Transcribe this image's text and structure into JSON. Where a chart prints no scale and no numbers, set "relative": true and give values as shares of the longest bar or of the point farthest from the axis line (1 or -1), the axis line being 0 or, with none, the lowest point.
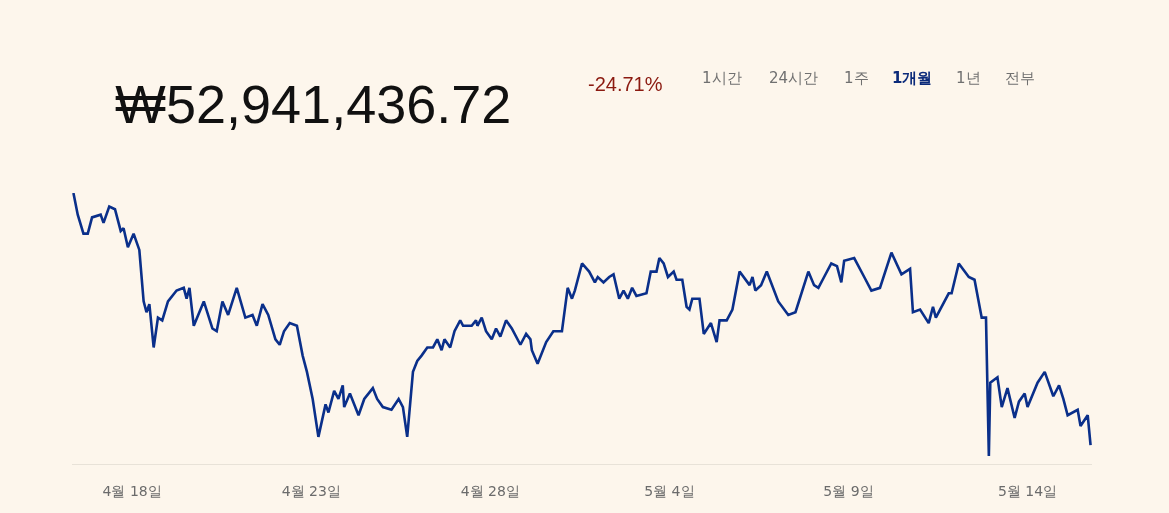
{
  "chart_data": {
    "type": "line",
    "title": "₩52,941,436.72",
    "subtitle": "-24.71%",
    "annotations": [
      "1시간",
      "24시간",
      "1주",
      "1개월",
      "1년",
      "전부"
    ],
    "relative": true,
    "x": [
      "--04-16T17:00",
      "--04-16T20:00",
      "--04-17T00:00",
      "--04-17T03:00",
      "--04-17T06:00",
      "--04-17T12:00",
      "--04-17T14:00",
      "--04-17T18:00",
      "--04-17T22:00",
      "--04-18T02:00",
      "--04-18T04:00",
      "--04-18T07:00",
      "--04-18T11:00",
      "--04-18T15:00",
      "--04-18T18:00",
      "--04-18T20:00",
      "--04-18T22:00",
      "--04-19T01:00",
      "--04-19T04:00",
      "--04-19T07:00",
      "--04-19T11:00",
      "--04-19T17:00",
      "--04-19T22:00",
      "--04-20T00:00",
      "--04-20T02:00",
      "--04-20T05:00",
      "--04-20T12:00",
      "--04-20T18:00",
      "--04-20T21:00",
      "--04-21T01:00",
      "--04-21T05:00",
      "--04-21T11:00",
      "--04-21T17:00",
      "--04-21T22:00",
      "--04-22T01:00",
      "--04-22T05:00",
      "--04-22T09:00",
      "--04-22T14:00",
      "--04-22T17:00",
      "--04-22T20:00",
      "--04-23T00:00",
      "--04-23T05:00",
      "--04-23T09:00",
      "--04-23T12:00",
      "--04-23T16:00",
      "--04-23T20:00",
      "--04-24T01:00",
      "--04-24T03:00",
      "--04-24T07:00",
      "--04-24T10:00",
      "--04-24T13:00",
      "--04-24T14:00",
      "--04-24T18:00",
      "--04-25T00:00",
      "--04-25T04:00",
      "--04-25T10:00",
      "--04-25T13:00",
      "--04-25T17:00",
      "--04-25T23:00",
      "--04-26T04:00",
      "--04-26T07:00",
      "--04-26T10:00",
      "--04-26T14:00",
      "--04-26T17:00",
      "--04-26T20:00",
      "--04-27T00:00",
      "--04-27T04:00",
      "--04-27T07:00",
      "--04-27T10:00",
      "--04-27T12:00",
      "--04-27T16:00",
      "--04-27T19:00",
      "--04-27T23:00",
      "--04-28T01:00",
      "--04-28T07:00",
      "--04-28T10:00",
      "--04-28T11:00",
      "--04-28T14:00",
      "--04-28T17:00",
      "--04-28T21:00",
      "--04-29T00:00",
      "--04-29T03:00",
      "--04-29T07:00",
      "--04-29T11:00",
      "--04-29T17:00",
      "--04-29T21:00",
      "--04-30T00:00",
      "--04-30T01:00",
      "--04-30T05:00",
      "--04-30T11:00",
      "--04-30T16:00",
      "--04-30T22:00",
      "--05-01T02:00",
      "--05-01T05:00",
      "--05-01T07:00",
      "--05-01T12:00",
      "--05-01T17:00",
      "--05-01T21:00",
      "--05-01T23:00",
      "--05-02T03:00",
      "--05-02T07:00",
      "--05-02T10:00",
      "--05-02T14:00",
      "--05-02T17:00",
      "--05-02T20:00",
      "--05-02T23:00",
      "--05-03T02:00",
      "--05-03T09:00",
      "--05-03T12:00",
      "--05-03T16:00",
      "--05-03T18:00",
      "--05-03T21:00",
      "--05-04T00:00",
      "--05-04T04:00",
      "--05-04T06:00",
      "--05-04T10:00",
      "--05-04T13:00",
      "--05-04T15:00",
      "--05-04T17:00",
      "--05-04T22:00",
      "--05-05T01:00",
      "--05-05T06:00",
      "--05-05T10:00",
      "--05-05T12:00",
      "--05-05T17:00",
      "--05-05T21:00",
      "--05-06T02:00",
      "--05-06T09:00",
      "--05-06T11:00",
      "--05-06T13:00",
      "--05-06T17:00",
      "--05-06T21:00",
      "--05-07T05:00",
      "--05-07T12:00",
      "--05-07T17:00",
      "--05-08T02:00",
      "--05-08T06:00",
      "--05-08T09:00",
      "--05-08T13:00",
      "--05-08T18:00",
      "--05-08T22:00",
      "--05-09T01:00",
      "--05-09T03:00",
      "--05-09T10:00",
      "--05-09T17:00",
      "--05-09T22:00",
      "--05-10T04:00",
      "--05-10T12:00",
      "--05-10T19:00",
      "--05-11T01:00",
      "--05-11T03:00",
      "--05-11T08:00",
      "--05-11T14:00",
      "--05-11T17:00",
      "--05-11T19:00",
      "--05-12T04:00",
      "--05-12T06:00",
      "--05-12T11:00",
      "--05-12T18:00",
      "--05-12T22:00",
      "--05-13T03:00",
      "--05-13T06:00",
      "--05-13T08:00",
      "--05-13T09:00",
      "--05-13T14:00",
      "--05-13T17:00",
      "--05-13T21:00",
      "--05-14T02:00",
      "--05-14T05:00",
      "--05-14T09:00",
      "--05-14T11:00",
      "--05-14T18:00",
      "--05-14T23:00",
      "--05-15T05:00",
      "--05-15T09:00",
      "--05-15T12:00",
      "--05-15T15:00",
      "--05-15T22:00",
      "--05-16T00:00",
      "--05-16T05:00",
      "--05-16T07:00"
    ],
    "series": [
      {
        "color": "#0a2f8a",
        "values": [
          1.0,
          0.92,
          0.85,
          0.85,
          0.91,
          0.92,
          0.89,
          0.95,
          0.94,
          0.86,
          0.87,
          0.8,
          0.85,
          0.79,
          0.6,
          0.56,
          0.59,
          0.43,
          0.54,
          0.53,
          0.6,
          0.64,
          0.65,
          0.61,
          0.65,
          0.51,
          0.6,
          0.5,
          0.49,
          0.6,
          0.55,
          0.65,
          0.54,
          0.55,
          0.51,
          0.59,
          0.55,
          0.46,
          0.44,
          0.49,
          0.52,
          0.51,
          0.4,
          0.34,
          0.24,
          0.1,
          0.22,
          0.19,
          0.27,
          0.24,
          0.29,
          0.21,
          0.26,
          0.18,
          0.24,
          0.28,
          0.24,
          0.21,
          0.2,
          0.24,
          0.21,
          0.1,
          0.34,
          0.38,
          0.4,
          0.43,
          0.43,
          0.46,
          0.42,
          0.46,
          0.43,
          0.49,
          0.53,
          0.51,
          0.51,
          0.53,
          0.51,
          0.54,
          0.49,
          0.46,
          0.5,
          0.47,
          0.53,
          0.5,
          0.44,
          0.48,
          0.46,
          0.42,
          0.37,
          0.45,
          0.49,
          0.49,
          0.65,
          0.61,
          0.64,
          0.74,
          0.71,
          0.67,
          0.69,
          0.67,
          0.69,
          0.7,
          0.61,
          0.64,
          0.61,
          0.65,
          0.62,
          0.63,
          0.71,
          0.71,
          0.76,
          0.74,
          0.69,
          0.71,
          0.68,
          0.68,
          0.58,
          0.57,
          0.61,
          0.61,
          0.48,
          0.52,
          0.45,
          0.53,
          0.53,
          0.57,
          0.71,
          0.66,
          0.69,
          0.64,
          0.66,
          0.71,
          0.6,
          0.55,
          0.56,
          0.71,
          0.66,
          0.65,
          0.69,
          0.74,
          0.73,
          0.67,
          0.75,
          0.76,
          0.69,
          0.64,
          0.65,
          0.78,
          0.7,
          0.72,
          0.56,
          0.57,
          0.52,
          0.58,
          0.54,
          0.63,
          0.63,
          0.74,
          0.69,
          0.68,
          0.54,
          0.54,
          0.03,
          0.3,
          0.32,
          0.21,
          0.28,
          0.17,
          0.23,
          0.26,
          0.21,
          0.3,
          0.34,
          0.25,
          0.29,
          0.24,
          0.18,
          0.2,
          0.14,
          0.18,
          0.07
        ]
      }
    ],
    "xlim": [
      "--04-16T16:00",
      "--05-16T08:00"
    ],
    "xticks": [
      {
        "value": "--04-18T10:00",
        "label": "4월 18일"
      },
      {
        "value": "--04-23T15:00",
        "label": "4월 23일"
      },
      {
        "value": "--04-28T20:00",
        "label": "4월 28일"
      },
      {
        "value": "--05-04T01:00",
        "label": "5월 4일"
      },
      {
        "value": "--05-09T06:00",
        "label": "5월 9일"
      },
      {
        "value": "--05-14T11:00",
        "label": "5월 14일"
      }
    ],
    "grid": false,
    "marker": "none",
    "line_style": "solid",
    "tick_labels": "x"
  }
}
